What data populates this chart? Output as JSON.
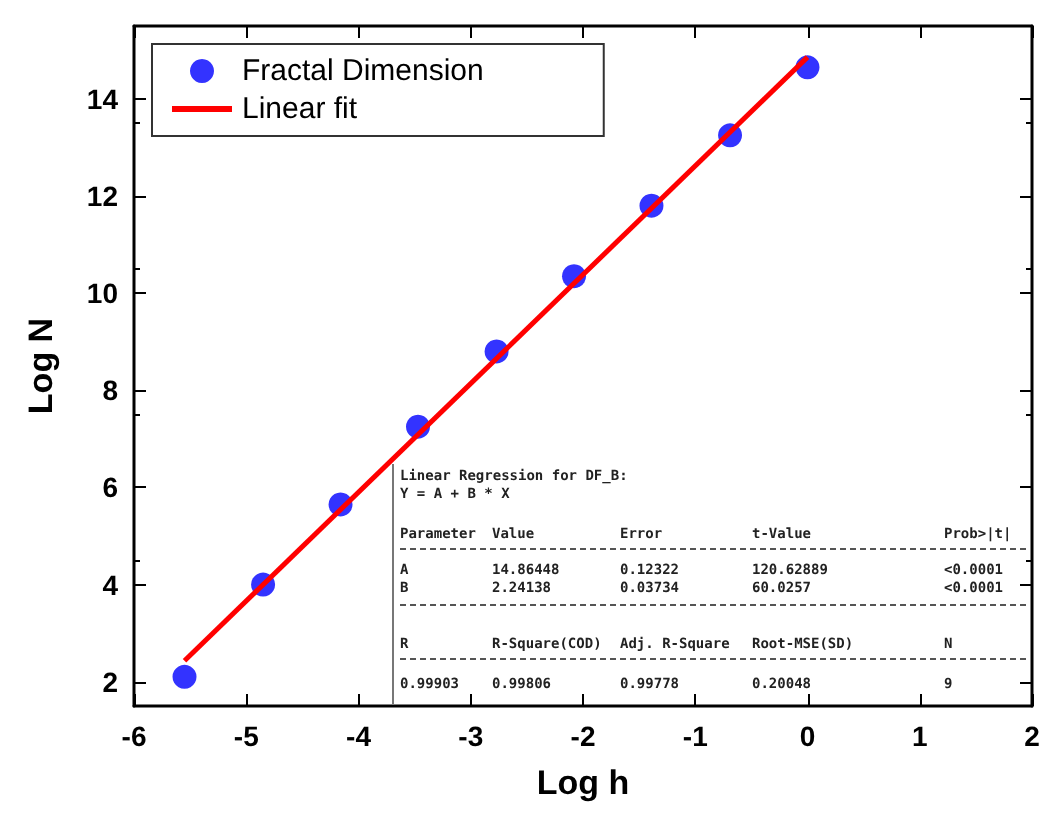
{
  "chart_data": {
    "type": "scatter",
    "xlabel": "Log h",
    "ylabel": "Log N",
    "series": [
      {
        "name": "Fractal Dimension",
        "color": "#0000ff",
        "marker": "circle",
        "x": [
          -5.55,
          -4.85,
          -4.16,
          -3.47,
          -2.77,
          -2.08,
          -1.39,
          -0.69,
          0
        ],
        "values": [
          2.1,
          4.0,
          5.65,
          7.25,
          8.8,
          10.35,
          11.8,
          13.25,
          14.65
        ]
      },
      {
        "name": "Linear fit",
        "type": "line",
        "color": "#ff0000",
        "marker": "none",
        "line_style": "solid",
        "x": [
          -5.55,
          0
        ],
        "values": [
          2.43,
          14.86
        ]
      }
    ],
    "xlim": [
      -6,
      2
    ],
    "xticks": [
      -6,
      -5,
      -4,
      -3,
      -2,
      -1,
      0,
      1,
      2
    ],
    "ylim": [
      1.5,
      15.5
    ],
    "yticks": [
      2,
      4,
      6,
      8,
      10,
      12,
      14
    ],
    "grid": false,
    "legend": "top left",
    "annotations": [
      "Linear Regression for DF_B:",
      "Y = A + B * X",
      "Parameter  Value  Error  t-Value  Prob>|t|",
      "A  14.86448  0.12322  120.62889  <0.0001",
      "B  2.24138  0.03734  60.0257  <0.0001",
      "R  R-Square(COD)  Adj. R-Square  Root-MSE(SD)  N",
      "0.99903  0.99806  0.99778  0.20048  9"
    ]
  }
}
